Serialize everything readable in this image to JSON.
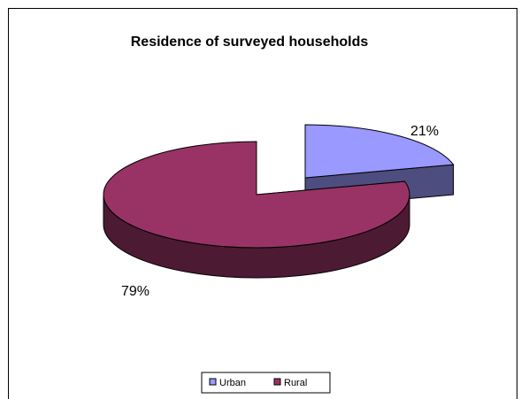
{
  "chart_data": {
    "type": "pie",
    "style": "3d",
    "title": "Residence of surveyed households",
    "categories": [
      "Urban",
      "Rural"
    ],
    "values": [
      21,
      79
    ],
    "data_labels": [
      "21%",
      "79%"
    ],
    "colors": [
      "#9999FF",
      "#993366"
    ],
    "side_colors": [
      "#4D4D80",
      "#4D1A33"
    ],
    "exploded": "Urban",
    "legend": {
      "placement": "bottom",
      "items": [
        {
          "label": "Urban",
          "color": "#9999FF"
        },
        {
          "label": "Rural",
          "color": "#993366"
        }
      ]
    }
  }
}
